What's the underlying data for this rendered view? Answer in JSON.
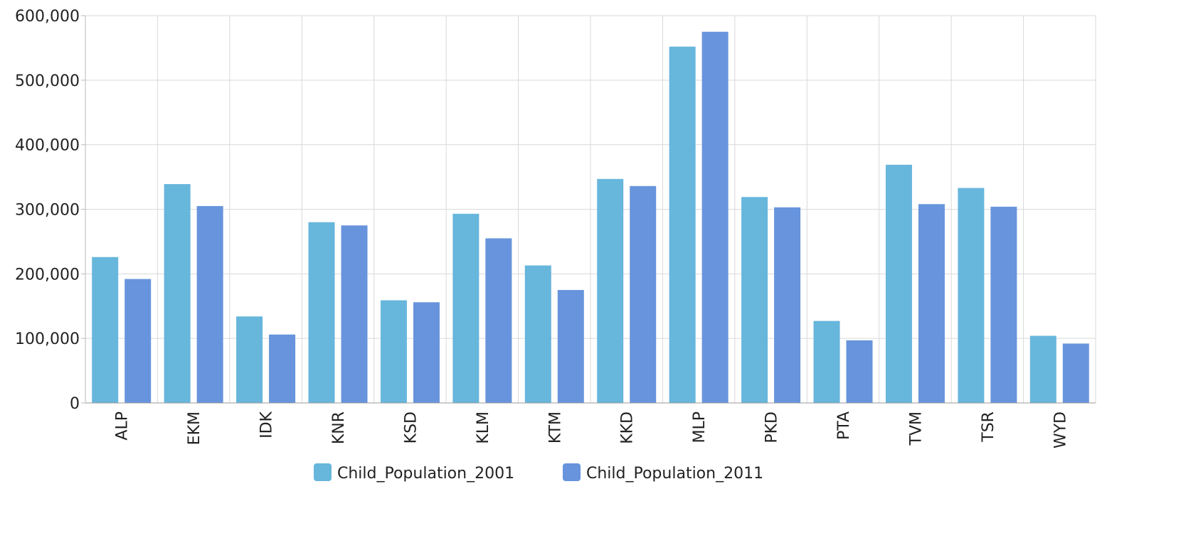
{
  "chart_data": {
    "type": "bar",
    "categories": [
      "ALP",
      "EKM",
      "IDK",
      "KNR",
      "KSD",
      "KLM",
      "KTM",
      "KKD",
      "MLP",
      "PKD",
      "PTA",
      "TVM",
      "TSR",
      "WYD"
    ],
    "series": [
      {
        "name": "Child_Population_2001",
        "color": "#67B6DC",
        "values": [
          226000,
          339000,
          134000,
          280000,
          159000,
          293000,
          213000,
          347000,
          552000,
          319000,
          127000,
          369000,
          333000,
          104000
        ]
      },
      {
        "name": "Child_Population_2011",
        "color": "#6794DC",
        "values": [
          192000,
          305000,
          106000,
          275000,
          156000,
          255000,
          175000,
          336000,
          575000,
          303000,
          97000,
          308000,
          304000,
          92000
        ]
      }
    ],
    "ylim": [
      0,
      600000
    ],
    "yticks": [
      0,
      100000,
      200000,
      300000,
      400000,
      500000,
      600000
    ],
    "ytick_labels": [
      "0",
      "100,000",
      "200,000",
      "300,000",
      "400,000",
      "500,000",
      "600,000"
    ],
    "grid": true,
    "legend_position": "bottom-center"
  }
}
